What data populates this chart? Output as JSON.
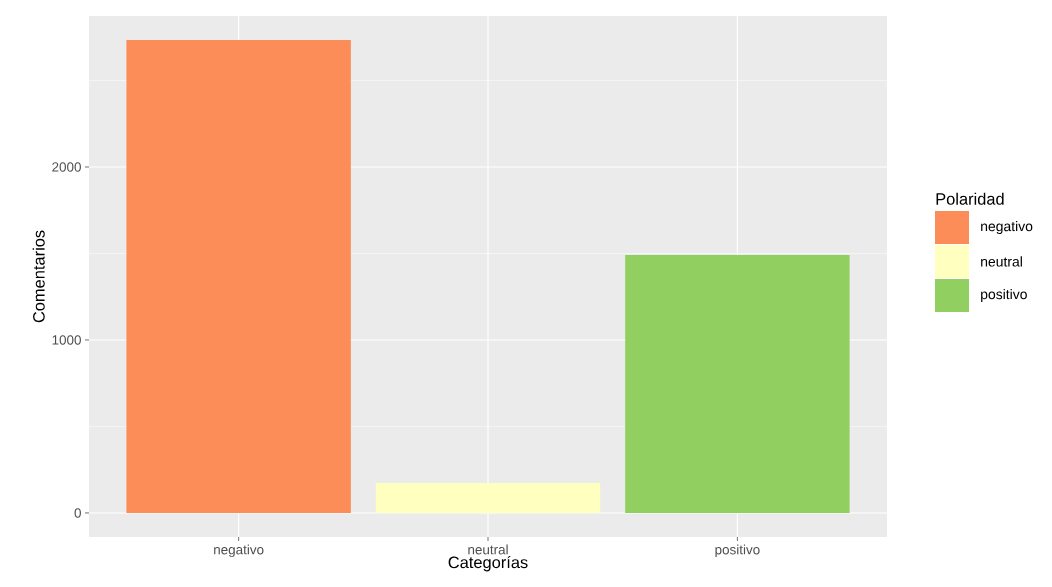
{
  "chart_data": {
    "type": "bar",
    "xlabel": "Categorías",
    "ylabel": "Comentarios",
    "legend_title": "Polaridad",
    "categories": [
      "negativo",
      "neutral",
      "positivo"
    ],
    "series": [
      {
        "name": "negativo",
        "color": "#fc8d59",
        "values": [
          2734,
          null,
          null
        ]
      },
      {
        "name": "neutral",
        "color": "#ffffbf",
        "values": [
          null,
          173,
          null
        ]
      },
      {
        "name": "positivo",
        "color": "#91cf60",
        "values": [
          null,
          null,
          1491
        ]
      }
    ],
    "ylim": [
      -139,
      2873
    ],
    "yticks": [
      0,
      1000,
      2000
    ],
    "grid": true,
    "legend": "right"
  }
}
